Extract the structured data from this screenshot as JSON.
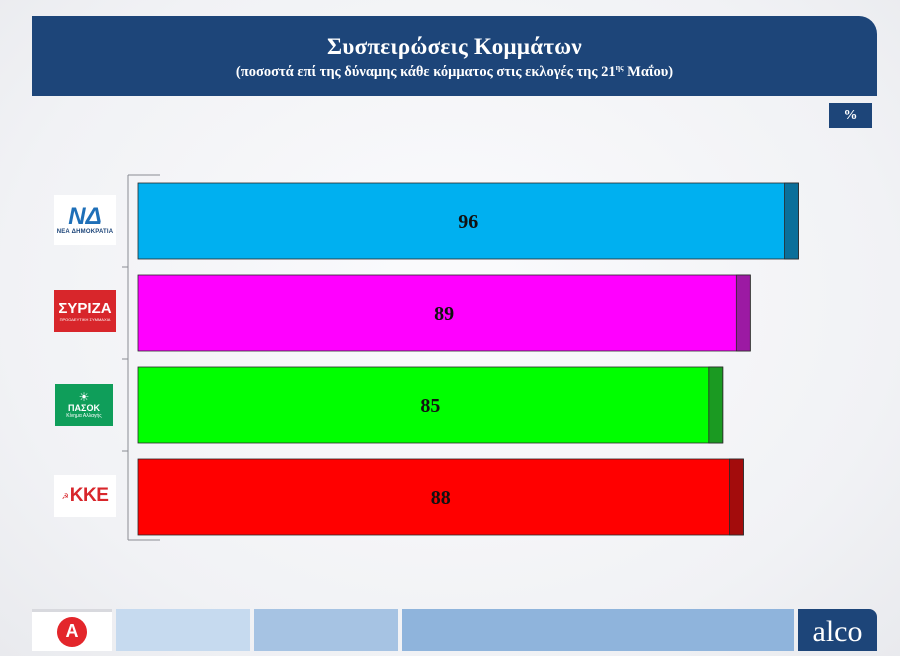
{
  "header": {
    "title": "Συσπειρώσεις Κομμάτων",
    "subtitle_main": "(ποσοστά επί της δύναμης κάθε κόμματος στις εκλογές της 21",
    "subtitle_sup": "ης",
    "subtitle_end": " Μαΐου)"
  },
  "unit_badge": "%",
  "logos": {
    "nd_mark": "ΝΔ",
    "nd_sub": "ΝΕΑ ΔΗΜΟΚΡΑΤΙΑ",
    "syriza_mark": "ΣΥΡΙΖΑ",
    "syriza_sub": "ΠΡΟΟΔΕΥΤΙΚΗ ΣΥΜΜΑΧΙΑ",
    "pasok_mark": "ΠΑΣΟΚ",
    "pasok_sub": "Κίνημα Αλλαγής",
    "kke_mark": "ΚΚΕ"
  },
  "footer": {
    "brand": "alco",
    "channel_initial": "A"
  },
  "chart_data": {
    "type": "bar",
    "orientation": "horizontal",
    "title": "Συσπειρώσεις Κομμάτων",
    "subtitle": "(ποσοστά επί της δύναμης κάθε κόμματος στις εκλογές της 21ης Μαΐου)",
    "unit": "%",
    "xlim": [
      0,
      100
    ],
    "grid": false,
    "categories": [
      "ΝΔ",
      "ΣΥΡΙΖΑ",
      "ΠΑΣΟΚ",
      "ΚΚΕ"
    ],
    "values": [
      96,
      89,
      85,
      88
    ],
    "colors": [
      "#00b0f0",
      "#ff00ff",
      "#00ff00",
      "#ff0000"
    ],
    "edge_colors": [
      "#0a6f9a",
      "#9c1aa3",
      "#1b9a22",
      "#a30c0c"
    ]
  }
}
